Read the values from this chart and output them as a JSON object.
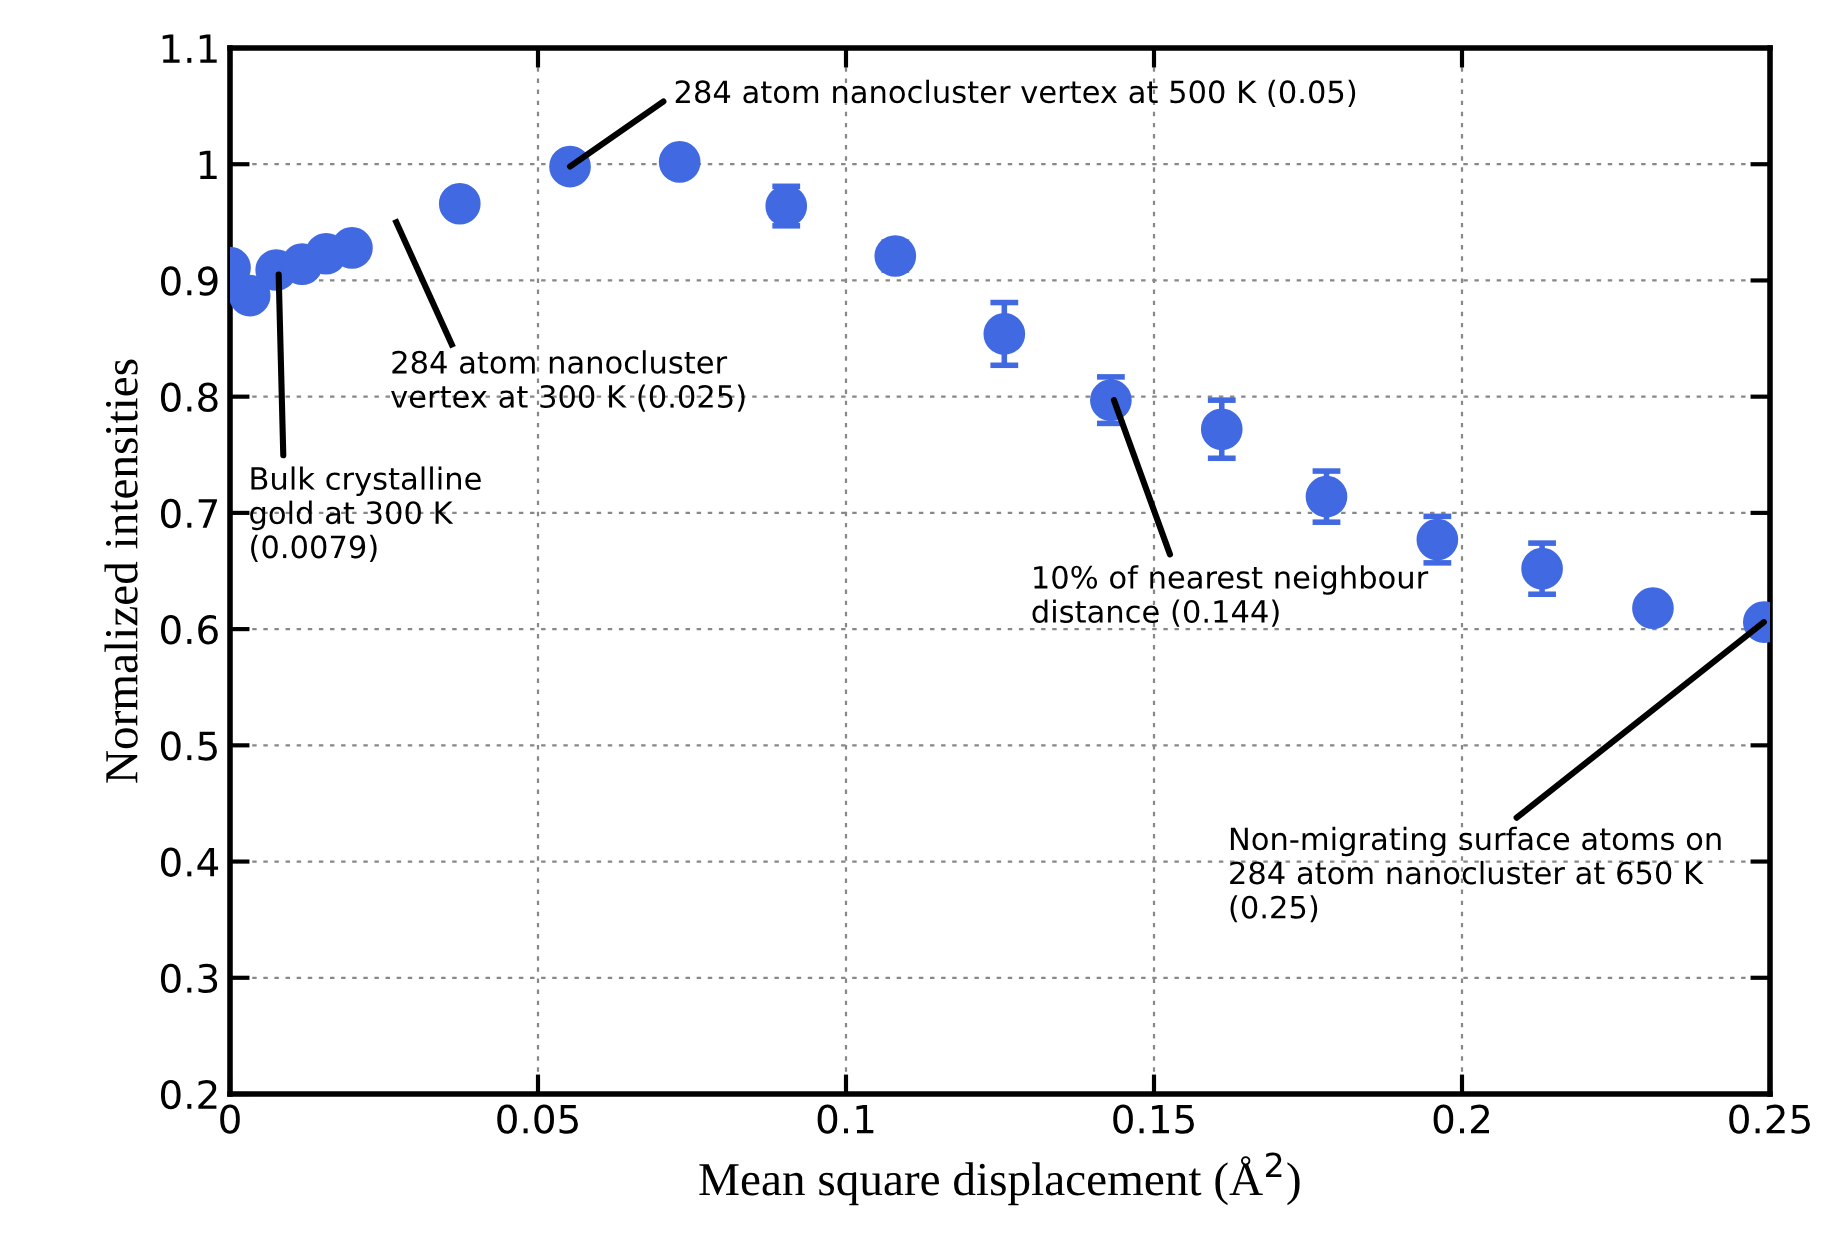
{
  "chart_data": {
    "type": "scatter",
    "xlabel": "Mean square displacement (Å$^{2}$)",
    "ylabel": "Normalized intensities",
    "x": [
      0,
      0.0032,
      0.0075,
      0.0117,
      0.0156,
      0.0198,
      0.0373,
      0.0552,
      0.073,
      0.0903,
      0.108,
      0.1257,
      0.143,
      0.161,
      0.178,
      0.196,
      0.213,
      0.231,
      0.249
    ],
    "series": [
      {
        "color": "#4169e1",
        "values": [
          0.911,
          0.887,
          0.909,
          0.914,
          0.923,
          0.928,
          0.966,
          0.998,
          1.002,
          0.964,
          0.921,
          0.854,
          0.797,
          0.772,
          0.714,
          0.677,
          0.652,
          0.618,
          0.606
        ],
        "errors": [
          null,
          null,
          null,
          null,
          null,
          null,
          null,
          null,
          null,
          0.017,
          0.012,
          0.027,
          0.02,
          0.025,
          0.022,
          0.02,
          0.022,
          null,
          0.01
        ]
      }
    ],
    "xlim": [
      0,
      0.25
    ],
    "xticks": [
      0,
      0.05,
      0.1,
      0.15,
      0.2,
      0.25
    ],
    "ylim": [
      0.2,
      1.1
    ],
    "yticks": [
      0.2,
      0.3,
      0.4,
      0.5,
      0.6,
      0.7,
      0.8,
      0.9,
      1,
      1.1
    ],
    "grid": true,
    "marker": "circle",
    "annotations": [
      {
        "text": "Bulk crystalline\ngold at 300 K\n(0.0079)",
        "x": 0.0079,
        "y": 0.905
      },
      "284 atom nanocluster\nvertex at 300 K (0.025)",
      {
        "text": "284 atom nanocluster vertex at 500 K (0.05)",
        "x": 0.0552,
        "y": 0.998
      },
      {
        "text": "10% of nearest neighbour\ndistance (0.144)",
        "x": 0.1435,
        "y": 0.797
      },
      {
        "text": "Non-migrating surface atoms on\n284 atom nanocluster at 650 K\n(0.25)",
        "x": 0.249,
        "y": 0.606
      }
    ]
  }
}
